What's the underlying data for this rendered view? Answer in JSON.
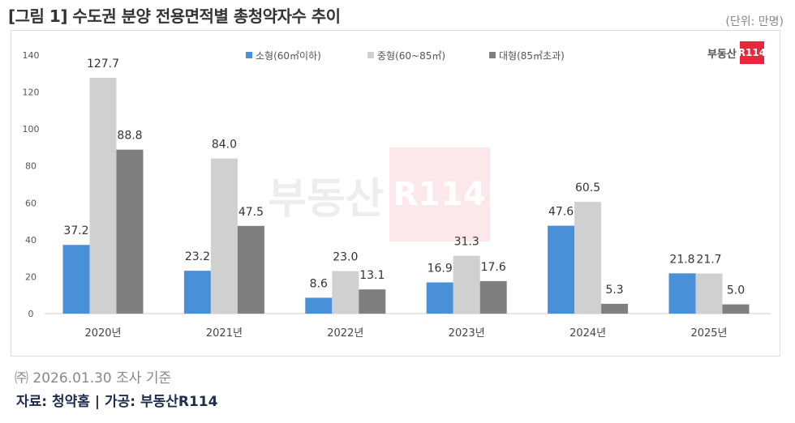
{
  "title": "[그림 1] 수도권 분양 전용면적별 총청약자수 추이",
  "unit": "(단위: 만명)",
  "note": "㈜ 2026.01.30 조사 기준",
  "source": "자료: 청약홈 | 가공: 부동산R114",
  "logo": {
    "text": "부동산",
    "badge": "R114"
  },
  "chart_data": {
    "type": "bar",
    "categories": [
      "2020년",
      "2021년",
      "2022년",
      "2023년",
      "2024년",
      "2025년"
    ],
    "series": [
      {
        "name": "소형(60㎡이하)",
        "color": "#4a90d9",
        "values": [
          37.2,
          23.2,
          8.6,
          16.9,
          47.6,
          21.8
        ]
      },
      {
        "name": "중형(60~85㎡)",
        "color": "#d0d0d0",
        "values": [
          127.7,
          84.0,
          23.0,
          31.3,
          60.5,
          21.7
        ]
      },
      {
        "name": "대형(85㎡초과)",
        "color": "#7f7f7f",
        "values": [
          88.8,
          47.5,
          13.1,
          17.6,
          5.3,
          5.0
        ]
      }
    ],
    "yticks": [
      0,
      20,
      40,
      60,
      80,
      100,
      120,
      140
    ],
    "ylim": [
      0,
      140
    ],
    "grid": false,
    "legend": "top-center"
  }
}
